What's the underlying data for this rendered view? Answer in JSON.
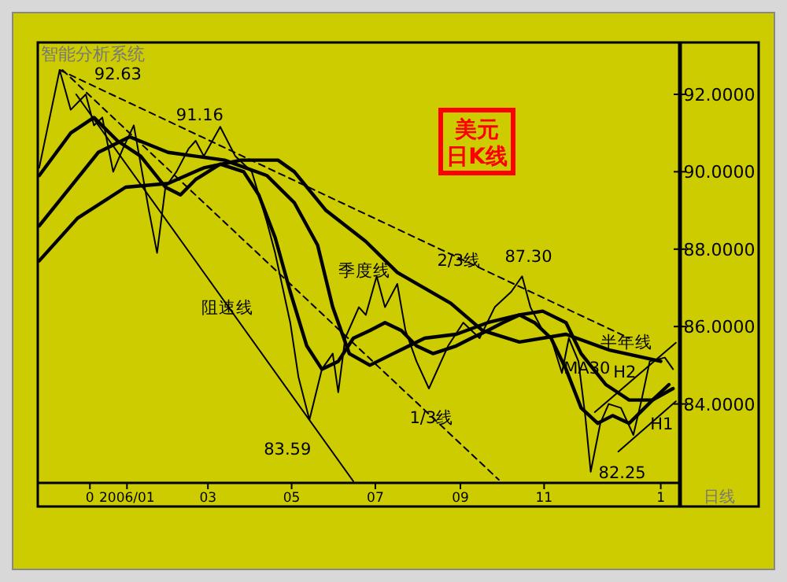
{
  "chart_data": {
    "type": "line",
    "title": "美元日K线",
    "subtitle": "智能分析系统",
    "xlim": [
      "2005-10-28",
      "2007-02-08"
    ],
    "ylim": [
      81.96,
      93.34
    ],
    "xticks": [
      {
        "value": "2005-12-05",
        "label": "0"
      },
      {
        "value": "2006-01-01",
        "label": "2006/01"
      },
      {
        "value": "2006-03-01",
        "label": "03"
      },
      {
        "value": "2006-05-01",
        "label": "05"
      },
      {
        "value": "2006-07-01",
        "label": "07"
      },
      {
        "value": "2006-09-01",
        "label": "09"
      },
      {
        "value": "2006-11-01",
        "label": "11"
      },
      {
        "value": "2007-01-25",
        "label": "1"
      }
    ],
    "yticks": [
      {
        "value": 84,
        "label": "84.0000"
      },
      {
        "value": 86,
        "label": "86.0000"
      },
      {
        "value": 88,
        "label": "88.0000"
      },
      {
        "value": 90,
        "label": "90.0000"
      },
      {
        "value": 92,
        "label": "92.0000"
      }
    ],
    "grid": false,
    "line_style": "solid",
    "series": [
      {
        "color": "#000000",
        "x": [
          "2005-10-29",
          "2005-11-13",
          "2005-11-21",
          "2005-12-02",
          "2005-12-08",
          "2005-12-14",
          "2005-12-22",
          "2005-12-29",
          "2006-01-06",
          "2006-01-17",
          "2006-01-23",
          "2006-01-29",
          "2006-02-06",
          "2006-02-15",
          "2006-02-20",
          "2006-02-26",
          "2006-03-10",
          "2006-03-21",
          "2006-04-02",
          "2006-04-13",
          "2006-04-19",
          "2006-04-30",
          "2006-05-06",
          "2006-05-14",
          "2006-05-23",
          "2006-05-31",
          "2006-06-04",
          "2006-06-09",
          "2006-06-19",
          "2006-06-24",
          "2006-07-02",
          "2006-07-08",
          "2006-07-17",
          "2006-07-23",
          "2006-07-31",
          "2006-08-09",
          "2006-08-23",
          "2006-09-03",
          "2006-09-15",
          "2006-09-26",
          "2006-10-08",
          "2006-10-16",
          "2006-10-22",
          "2006-10-31",
          "2006-11-06",
          "2006-11-14",
          "2006-11-19",
          "2006-11-26",
          "2006-12-01",
          "2006-12-05",
          "2006-12-12",
          "2006-12-18",
          "2006-12-27",
          "2007-01-05",
          "2007-01-11",
          "2007-01-17",
          "2007-01-28",
          "2007-02-03"
        ],
        "values": [
          90.1,
          92.63,
          91.6,
          92.0,
          91.2,
          91.4,
          90.0,
          90.6,
          91.2,
          89.0,
          87.9,
          89.6,
          90.0,
          90.6,
          90.8,
          90.4,
          91.16,
          90.4,
          90.0,
          88.7,
          87.9,
          86.1,
          84.7,
          83.59,
          84.9,
          85.3,
          84.3,
          85.7,
          86.5,
          86.3,
          87.3,
          86.5,
          87.1,
          85.9,
          85.1,
          84.4,
          85.5,
          86.1,
          85.7,
          86.5,
          86.9,
          87.3,
          86.5,
          85.9,
          85.7,
          84.8,
          85.7,
          85.1,
          83.7,
          82.25,
          83.5,
          84.0,
          83.9,
          83.2,
          84.1,
          85.1,
          85.2,
          84.9
        ]
      },
      {
        "color": "#000000",
        "x": [
          "2005-10-29",
          "2005-11-21",
          "2005-12-08",
          "2005-12-25",
          "2006-01-11",
          "2006-01-29",
          "2006-02-09",
          "2006-02-20",
          "2006-03-10",
          "2006-03-27",
          "2006-04-07",
          "2006-04-19",
          "2006-04-30",
          "2006-05-12",
          "2006-05-23",
          "2006-06-04",
          "2006-06-15",
          "2006-06-27",
          "2006-07-08",
          "2006-07-20",
          "2006-07-31",
          "2006-08-12",
          "2006-08-29",
          "2006-09-09",
          "2006-09-21",
          "2006-10-02",
          "2006-10-14",
          "2006-10-25",
          "2006-11-06",
          "2006-11-17",
          "2006-11-28",
          "2006-12-10",
          "2006-12-21",
          "2007-01-02",
          "2007-01-19",
          "2007-01-31"
        ],
        "values": [
          89.9,
          91.0,
          91.4,
          90.8,
          90.4,
          89.6,
          89.4,
          89.8,
          90.2,
          90.0,
          89.4,
          88.3,
          86.9,
          85.5,
          84.9,
          85.1,
          85.7,
          85.9,
          86.1,
          85.9,
          85.5,
          85.3,
          85.5,
          85.7,
          85.9,
          86.1,
          86.3,
          86.1,
          85.7,
          84.9,
          83.9,
          83.5,
          83.7,
          83.5,
          84.1,
          84.5
        ]
      },
      {
        "color": "#000000",
        "x": [
          "2005-10-29",
          "2005-12-11",
          "2006-01-03",
          "2006-01-31",
          "2006-03-13",
          "2006-04-13",
          "2006-05-03",
          "2006-05-20",
          "2006-05-31",
          "2006-06-12",
          "2006-06-27",
          "2006-07-14",
          "2006-08-06",
          "2006-08-29",
          "2006-09-21",
          "2006-10-14",
          "2006-10-31",
          "2006-11-17",
          "2006-11-28",
          "2006-12-16",
          "2007-01-02",
          "2007-01-19",
          "2007-02-03"
        ],
        "values": [
          88.6,
          90.5,
          90.9,
          90.5,
          90.3,
          89.9,
          89.2,
          88.1,
          86.5,
          85.3,
          85.0,
          85.3,
          85.7,
          85.8,
          86.1,
          86.3,
          86.4,
          86.1,
          85.3,
          84.5,
          84.1,
          84.1,
          84.4
        ]
      },
      {
        "color": "#000000",
        "x": [
          "2005-10-29",
          "2005-11-26",
          "2005-12-31",
          "2006-01-31",
          "2006-02-26",
          "2006-03-25",
          "2006-04-21",
          "2006-05-03",
          "2006-05-26",
          "2006-06-24",
          "2006-07-17",
          "2006-08-25",
          "2006-09-17",
          "2006-10-14",
          "2006-11-17",
          "2006-12-18",
          "2007-01-25"
        ],
        "values": [
          87.7,
          88.8,
          89.6,
          89.7,
          90.1,
          90.3,
          90.3,
          90.0,
          89.0,
          88.2,
          87.4,
          86.6,
          85.9,
          85.6,
          85.8,
          85.4,
          85.1
        ]
      },
      {
        "color": "#000000",
        "line_style": "dashed",
        "x": [
          "2005-11-13",
          "2007-01-02"
        ],
        "values": [
          92.63,
          85.7
        ]
      },
      {
        "color": "#000000",
        "line_style": "dashed",
        "x": [
          "2005-11-15",
          "2006-09-29"
        ],
        "values": [
          92.63,
          82.04
        ]
      },
      {
        "color": "#000000",
        "x": [
          "2005-11-25",
          "2006-06-15"
        ],
        "values": [
          92.0,
          82.0
        ]
      },
      {
        "color": "#000000",
        "x": [
          "2006-12-25",
          "2007-02-05"
        ],
        "values": [
          82.77,
          84.07
        ]
      },
      {
        "color": "#000000",
        "x": [
          "2006-12-08",
          "2007-02-05"
        ],
        "values": [
          83.79,
          85.58
        ]
      }
    ],
    "annotations": [
      {
        "text": "92.63",
        "x": "2005-11-13",
        "y": 92.63
      },
      {
        "text": "91.16",
        "x": "2006-03-10",
        "y": 91.16
      },
      {
        "text": "季度线",
        "x": "2006-05-31",
        "y": 86.5
      },
      {
        "text": "阻速线",
        "x": "2006-03-15",
        "y": 86.51
      },
      {
        "text": "2/3线",
        "x": "2006-08-31",
        "y": 87.73
      },
      {
        "text": "87.30",
        "x": "2006-10-16",
        "y": 87.3
      },
      {
        "text": "半年线",
        "x": "2006-12-31",
        "y": 85.62
      },
      {
        "text": "MA30",
        "x": "2006-12-16",
        "y": 84.5
      },
      {
        "text": "H2",
        "x": "2006-12-08",
        "y": 83.79
      },
      {
        "text": "H1",
        "x": "2007-02-05",
        "y": 84.07
      },
      {
        "text": "1/3线",
        "x": "2006-08-11",
        "y": 83.67
      },
      {
        "text": "83.59",
        "x": "2006-05-14",
        "y": 83.59
      },
      {
        "text": "82.25",
        "x": "2006-12-05",
        "y": 82.25
      },
      "日线"
    ]
  }
}
